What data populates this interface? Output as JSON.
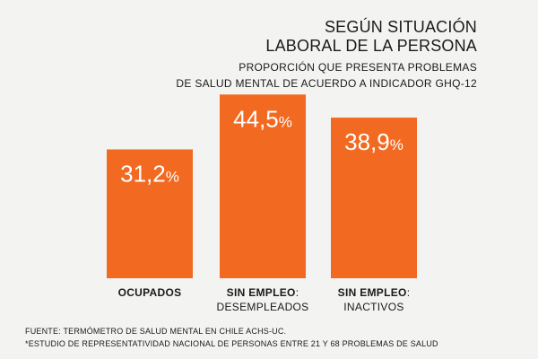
{
  "header": {
    "title_line1": "SEGÚN SITUACIÓN",
    "title_line2": "LABORAL DE LA PERSONA",
    "subtitle_line1": "PROPORCIÓN QUE PRESENTA PROBLEMAS",
    "subtitle_line2": "DE SALUD MENTAL DE ACUERDO A INDICADOR GHQ-12"
  },
  "chart_data": {
    "type": "bar",
    "categories": [
      "OCUPADOS",
      "SIN EMPLEO: DESEMPLEADOS",
      "SIN EMPLEO: INACTIVOS"
    ],
    "category_labels": [
      {
        "bold": "OCUPADOS",
        "line2": ""
      },
      {
        "bold": "SIN EMPLEO",
        "rest": ":",
        "line2": "DESEMPLEADOS"
      },
      {
        "bold": "SIN EMPLEO",
        "rest": ":",
        "line2": "INACTIVOS"
      }
    ],
    "values": [
      31.2,
      44.5,
      38.9
    ],
    "value_labels": [
      {
        "num": "31,2",
        "unit": "%"
      },
      {
        "num": "44,5",
        "unit": "%"
      },
      {
        "num": "38,9",
        "unit": "%"
      }
    ],
    "ylim": [
      0,
      50
    ],
    "title": "SEGÚN SITUACIÓN LABORAL DE LA PERSONA",
    "grid": false,
    "bar_color": "#f26a21"
  },
  "footer": {
    "source": "FUENTE: TERMÓMETRO DE SALUD MENTAL EN CHILE ACHS-UC.",
    "note": "*ESTUDIO DE REPRESENTATIVIDAD NACIONAL DE PERSONAS ENTRE 21 Y 68  PROBLEMAS DE SALUD"
  }
}
